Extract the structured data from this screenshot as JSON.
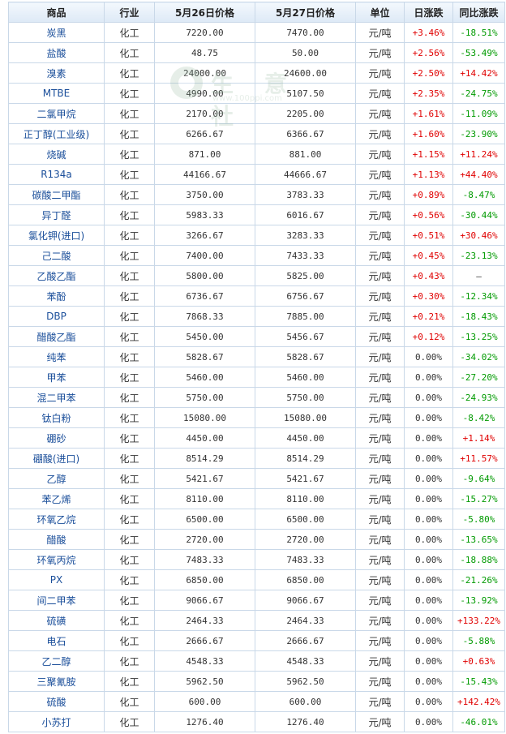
{
  "watermark": {
    "text": "生 意 社",
    "url": "www.100ppi.com"
  },
  "headers": [
    "商品",
    "行业",
    "5月26日价格",
    "5月27日价格",
    "单位",
    "日涨跌",
    "同比涨跌"
  ],
  "rows": [
    {
      "name": "炭黑",
      "industry": "化工",
      "p1": "7220.00",
      "p2": "7470.00",
      "unit": "元/吨",
      "day": "+3.46%",
      "yoy": "-18.51%"
    },
    {
      "name": "盐酸",
      "industry": "化工",
      "p1": "48.75",
      "p2": "50.00",
      "unit": "元/吨",
      "day": "+2.56%",
      "yoy": "-53.49%"
    },
    {
      "name": "溴素",
      "industry": "化工",
      "p1": "24000.00",
      "p2": "24600.00",
      "unit": "元/吨",
      "day": "+2.50%",
      "yoy": "+14.42%"
    },
    {
      "name": "MTBE",
      "industry": "化工",
      "p1": "4990.00",
      "p2": "5107.50",
      "unit": "元/吨",
      "day": "+2.35%",
      "yoy": "-24.75%"
    },
    {
      "name": "二氯甲烷",
      "industry": "化工",
      "p1": "2170.00",
      "p2": "2205.00",
      "unit": "元/吨",
      "day": "+1.61%",
      "yoy": "-11.09%"
    },
    {
      "name": "正丁醇(工业级)",
      "industry": "化工",
      "p1": "6266.67",
      "p2": "6366.67",
      "unit": "元/吨",
      "day": "+1.60%",
      "yoy": "-23.90%"
    },
    {
      "name": "烧碱",
      "industry": "化工",
      "p1": "871.00",
      "p2": "881.00",
      "unit": "元/吨",
      "day": "+1.15%",
      "yoy": "+11.24%"
    },
    {
      "name": "R134a",
      "industry": "化工",
      "p1": "44166.67",
      "p2": "44666.67",
      "unit": "元/吨",
      "day": "+1.13%",
      "yoy": "+44.40%"
    },
    {
      "name": "碳酸二甲酯",
      "industry": "化工",
      "p1": "3750.00",
      "p2": "3783.33",
      "unit": "元/吨",
      "day": "+0.89%",
      "yoy": "-8.47%"
    },
    {
      "name": "异丁醛",
      "industry": "化工",
      "p1": "5983.33",
      "p2": "6016.67",
      "unit": "元/吨",
      "day": "+0.56%",
      "yoy": "-30.44%"
    },
    {
      "name": "氯化钾(进口)",
      "industry": "化工",
      "p1": "3266.67",
      "p2": "3283.33",
      "unit": "元/吨",
      "day": "+0.51%",
      "yoy": "+30.46%"
    },
    {
      "name": "己二酸",
      "industry": "化工",
      "p1": "7400.00",
      "p2": "7433.33",
      "unit": "元/吨",
      "day": "+0.45%",
      "yoy": "-23.13%"
    },
    {
      "name": "乙酸乙酯",
      "industry": "化工",
      "p1": "5800.00",
      "p2": "5825.00",
      "unit": "元/吨",
      "day": "+0.43%",
      "yoy": "—"
    },
    {
      "name": "苯酚",
      "industry": "化工",
      "p1": "6736.67",
      "p2": "6756.67",
      "unit": "元/吨",
      "day": "+0.30%",
      "yoy": "-12.34%"
    },
    {
      "name": "DBP",
      "industry": "化工",
      "p1": "7868.33",
      "p2": "7885.00",
      "unit": "元/吨",
      "day": "+0.21%",
      "yoy": "-18.43%"
    },
    {
      "name": "醋酸乙酯",
      "industry": "化工",
      "p1": "5450.00",
      "p2": "5456.67",
      "unit": "元/吨",
      "day": "+0.12%",
      "yoy": "-13.25%"
    },
    {
      "name": "纯苯",
      "industry": "化工",
      "p1": "5828.67",
      "p2": "5828.67",
      "unit": "元/吨",
      "day": "0.00%",
      "yoy": "-34.02%"
    },
    {
      "name": "甲苯",
      "industry": "化工",
      "p1": "5460.00",
      "p2": "5460.00",
      "unit": "元/吨",
      "day": "0.00%",
      "yoy": "-27.20%"
    },
    {
      "name": "混二甲苯",
      "industry": "化工",
      "p1": "5750.00",
      "p2": "5750.00",
      "unit": "元/吨",
      "day": "0.00%",
      "yoy": "-24.93%"
    },
    {
      "name": "钛白粉",
      "industry": "化工",
      "p1": "15080.00",
      "p2": "15080.00",
      "unit": "元/吨",
      "day": "0.00%",
      "yoy": "-8.42%"
    },
    {
      "name": "硼砂",
      "industry": "化工",
      "p1": "4450.00",
      "p2": "4450.00",
      "unit": "元/吨",
      "day": "0.00%",
      "yoy": "+1.14%"
    },
    {
      "name": "硼酸(进口)",
      "industry": "化工",
      "p1": "8514.29",
      "p2": "8514.29",
      "unit": "元/吨",
      "day": "0.00%",
      "yoy": "+11.57%"
    },
    {
      "name": "乙醇",
      "industry": "化工",
      "p1": "5421.67",
      "p2": "5421.67",
      "unit": "元/吨",
      "day": "0.00%",
      "yoy": "-9.64%"
    },
    {
      "name": "苯乙烯",
      "industry": "化工",
      "p1": "8110.00",
      "p2": "8110.00",
      "unit": "元/吨",
      "day": "0.00%",
      "yoy": "-15.27%"
    },
    {
      "name": "环氧乙烷",
      "industry": "化工",
      "p1": "6500.00",
      "p2": "6500.00",
      "unit": "元/吨",
      "day": "0.00%",
      "yoy": "-5.80%"
    },
    {
      "name": "醋酸",
      "industry": "化工",
      "p1": "2720.00",
      "p2": "2720.00",
      "unit": "元/吨",
      "day": "0.00%",
      "yoy": "-13.65%"
    },
    {
      "name": "环氧丙烷",
      "industry": "化工",
      "p1": "7483.33",
      "p2": "7483.33",
      "unit": "元/吨",
      "day": "0.00%",
      "yoy": "-18.88%"
    },
    {
      "name": "PX",
      "industry": "化工",
      "p1": "6850.00",
      "p2": "6850.00",
      "unit": "元/吨",
      "day": "0.00%",
      "yoy": "-21.26%"
    },
    {
      "name": "间二甲苯",
      "industry": "化工",
      "p1": "9066.67",
      "p2": "9066.67",
      "unit": "元/吨",
      "day": "0.00%",
      "yoy": "-13.92%"
    },
    {
      "name": "硫磺",
      "industry": "化工",
      "p1": "2464.33",
      "p2": "2464.33",
      "unit": "元/吨",
      "day": "0.00%",
      "yoy": "+133.22%"
    },
    {
      "name": "电石",
      "industry": "化工",
      "p1": "2666.67",
      "p2": "2666.67",
      "unit": "元/吨",
      "day": "0.00%",
      "yoy": "-5.88%"
    },
    {
      "name": "乙二醇",
      "industry": "化工",
      "p1": "4548.33",
      "p2": "4548.33",
      "unit": "元/吨",
      "day": "0.00%",
      "yoy": "+0.63%"
    },
    {
      "name": "三聚氰胺",
      "industry": "化工",
      "p1": "5962.50",
      "p2": "5962.50",
      "unit": "元/吨",
      "day": "0.00%",
      "yoy": "-15.43%"
    },
    {
      "name": "硫酸",
      "industry": "化工",
      "p1": "600.00",
      "p2": "600.00",
      "unit": "元/吨",
      "day": "0.00%",
      "yoy": "+142.42%"
    },
    {
      "name": "小苏打",
      "industry": "化工",
      "p1": "1276.40",
      "p2": "1276.40",
      "unit": "元/吨",
      "day": "0.00%",
      "yoy": "-46.01%"
    }
  ],
  "colors": {
    "up": "#e00000",
    "down": "#009a00",
    "link": "#1a4e9a",
    "border": "#c9d8e8"
  }
}
